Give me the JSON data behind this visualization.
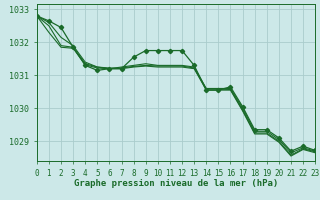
{
  "title": "Graphe pression niveau de la mer (hPa)",
  "background_color": "#cce8e8",
  "grid_color": "#aacccc",
  "line_color": "#1a6b2a",
  "label_bg": "#2a7a3a",
  "x_ticks": [
    0,
    1,
    2,
    3,
    4,
    5,
    6,
    7,
    8,
    9,
    10,
    11,
    12,
    13,
    14,
    15,
    16,
    17,
    18,
    19,
    20,
    21,
    22,
    23
  ],
  "ylim": [
    1028.4,
    1033.15
  ],
  "yticks": [
    1029,
    1030,
    1031,
    1032,
    1033
  ],
  "series": [
    [
      1032.8,
      1032.65,
      1032.45,
      1031.85,
      1031.3,
      1031.15,
      1031.2,
      1031.2,
      1031.55,
      1031.75,
      1031.75,
      1031.75,
      1031.75,
      1031.3,
      1030.55,
      1030.55,
      1030.65,
      1030.05,
      1029.35,
      1029.35,
      1029.1,
      1028.7,
      1028.85,
      1028.72
    ],
    [
      1032.8,
      1032.6,
      1032.15,
      1031.9,
      1031.4,
      1031.25,
      1031.2,
      1031.25,
      1031.3,
      1031.35,
      1031.3,
      1031.3,
      1031.3,
      1031.25,
      1030.6,
      1030.6,
      1030.6,
      1030.0,
      1029.3,
      1029.3,
      1029.05,
      1028.65,
      1028.8,
      1028.7
    ],
    [
      1032.8,
      1032.5,
      1031.9,
      1031.85,
      1031.35,
      1031.25,
      1031.22,
      1031.22,
      1031.27,
      1031.3,
      1031.28,
      1031.28,
      1031.28,
      1031.22,
      1030.58,
      1030.58,
      1030.57,
      1029.95,
      1029.25,
      1029.25,
      1029.0,
      1028.58,
      1028.77,
      1028.68
    ],
    [
      1032.8,
      1032.3,
      1031.85,
      1031.82,
      1031.32,
      1031.22,
      1031.2,
      1031.2,
      1031.25,
      1031.28,
      1031.25,
      1031.25,
      1031.25,
      1031.2,
      1030.55,
      1030.55,
      1030.55,
      1029.92,
      1029.22,
      1029.22,
      1028.97,
      1028.55,
      1028.75,
      1028.65
    ]
  ],
  "xlim": [
    0,
    23
  ]
}
